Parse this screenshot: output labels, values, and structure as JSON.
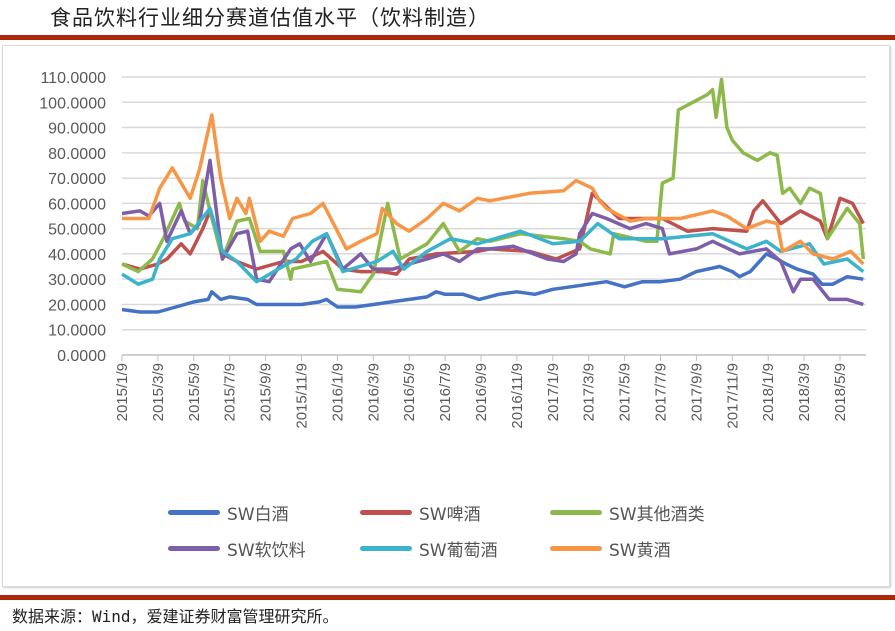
{
  "title": "食品饮料行业细分赛道估值水平（饮料制造）",
  "source": "数据来源：Wind，爱建证券财富管理研究所。",
  "chart_data": {
    "type": "line",
    "title": "食品饮料行业细分赛道估值水平（饮料制造）",
    "xlabel": "",
    "ylabel": "",
    "x_unit": "months since 2015/1/9",
    "xlim": [
      0,
      41.3
    ],
    "ylim": [
      0,
      110
    ],
    "grid": true,
    "legend_position": "bottom",
    "y_ticks": [
      "0.0000",
      "10.0000",
      "20.0000",
      "30.0000",
      "40.0000",
      "50.0000",
      "60.0000",
      "70.0000",
      "80.0000",
      "90.0000",
      "100.0000",
      "110.0000"
    ],
    "x_ticks": [
      "2015/1/9",
      "2015/3/9",
      "2015/5/9",
      "2015/7/9",
      "2015/9/9",
      "2015/11/9",
      "2016/1/9",
      "2016/3/9",
      "2016/5/9",
      "2016/7/9",
      "2016/9/9",
      "2016/11/9",
      "2017/1/9",
      "2017/3/9",
      "2017/5/9",
      "2017/7/9",
      "2017/9/9",
      "2017/11/9",
      "2018/1/9",
      "2018/3/9",
      "2018/5/9"
    ],
    "series": [
      {
        "name": "SW白酒",
        "color": "#4472c4",
        "points": [
          [
            0,
            18
          ],
          [
            1,
            17
          ],
          [
            2,
            17
          ],
          [
            3,
            19
          ],
          [
            4,
            21
          ],
          [
            4.8,
            22
          ],
          [
            5,
            25
          ],
          [
            5.5,
            22
          ],
          [
            6,
            23
          ],
          [
            7,
            22
          ],
          [
            7.5,
            20
          ],
          [
            9,
            20
          ],
          [
            10,
            20
          ],
          [
            11,
            21
          ],
          [
            11.4,
            22
          ],
          [
            12,
            19
          ],
          [
            13,
            19
          ],
          [
            14,
            20
          ],
          [
            15,
            21
          ],
          [
            16,
            22
          ],
          [
            17,
            23
          ],
          [
            17.5,
            25
          ],
          [
            18,
            24
          ],
          [
            19,
            24
          ],
          [
            19.9,
            22
          ],
          [
            21,
            24
          ],
          [
            22,
            25
          ],
          [
            23,
            24
          ],
          [
            24,
            26
          ],
          [
            25,
            27
          ],
          [
            26,
            28
          ],
          [
            27,
            29
          ],
          [
            28,
            27
          ],
          [
            29,
            29
          ],
          [
            30,
            29
          ],
          [
            31.1,
            30
          ],
          [
            32,
            33
          ],
          [
            33.3,
            35
          ],
          [
            34,
            33
          ],
          [
            34.4,
            31
          ],
          [
            35,
            33
          ],
          [
            35.9,
            40
          ],
          [
            36.5,
            38
          ],
          [
            37,
            36
          ],
          [
            37.6,
            34
          ],
          [
            38.5,
            32
          ],
          [
            39,
            28
          ],
          [
            39.6,
            28
          ],
          [
            40.4,
            31
          ],
          [
            41.3,
            30
          ]
        ]
      },
      {
        "name": "SW啤酒",
        "color": "#c0504d",
        "points": [
          [
            0,
            36
          ],
          [
            1,
            34
          ],
          [
            2,
            36
          ],
          [
            2.5,
            38
          ],
          [
            3.3,
            44
          ],
          [
            3.8,
            40
          ],
          [
            4.5,
            50
          ],
          [
            4.9,
            57
          ],
          [
            5.6,
            40
          ],
          [
            6.4,
            37
          ],
          [
            7.5,
            34
          ],
          [
            9,
            37
          ],
          [
            10,
            37
          ],
          [
            11.2,
            41
          ],
          [
            12.3,
            34
          ],
          [
            13.3,
            33
          ],
          [
            14.5,
            33
          ],
          [
            15.3,
            32
          ],
          [
            16,
            38
          ],
          [
            17.5,
            40
          ],
          [
            19.8,
            41
          ],
          [
            20.5,
            42
          ],
          [
            22.7,
            41
          ],
          [
            24.2,
            38
          ],
          [
            25.5,
            42
          ],
          [
            26.2,
            64
          ],
          [
            26.8,
            60
          ],
          [
            27.7,
            54
          ],
          [
            29.2,
            54
          ],
          [
            30.1,
            54
          ],
          [
            31.5,
            49
          ],
          [
            32.9,
            50
          ],
          [
            34.8,
            49
          ],
          [
            35.2,
            57
          ],
          [
            35.7,
            61
          ],
          [
            36.7,
            52
          ],
          [
            37.8,
            57
          ],
          [
            38.9,
            53
          ],
          [
            39.3,
            46
          ],
          [
            40,
            62
          ],
          [
            40.7,
            60
          ],
          [
            41.3,
            52
          ]
        ]
      },
      {
        "name": "SW其他酒类",
        "color": "#8db94b",
        "points": [
          [
            0,
            36
          ],
          [
            0.9,
            33
          ],
          [
            1.7,
            38
          ],
          [
            2.3,
            46
          ],
          [
            3.2,
            60
          ],
          [
            3.5,
            53
          ],
          [
            4.2,
            50
          ],
          [
            4.5,
            69
          ],
          [
            4.9,
            57
          ],
          [
            5.6,
            38
          ],
          [
            6.4,
            53
          ],
          [
            7.1,
            54
          ],
          [
            7.7,
            41
          ],
          [
            9,
            41
          ],
          [
            9.4,
            30
          ],
          [
            9.5,
            34
          ],
          [
            11.4,
            37
          ],
          [
            12,
            26
          ],
          [
            13.3,
            25
          ],
          [
            14,
            32
          ],
          [
            14.8,
            60
          ],
          [
            15.5,
            38
          ],
          [
            17,
            44
          ],
          [
            17.9,
            52
          ],
          [
            18.8,
            41
          ],
          [
            19.8,
            46
          ],
          [
            20.5,
            45
          ],
          [
            22.2,
            48
          ],
          [
            24.6,
            46
          ],
          [
            25.5,
            45
          ],
          [
            26.1,
            42
          ],
          [
            27.2,
            40
          ],
          [
            27.4,
            48
          ],
          [
            29.2,
            45
          ],
          [
            29.8,
            45
          ],
          [
            30.1,
            68
          ],
          [
            30.7,
            70
          ],
          [
            31,
            97
          ],
          [
            31.8,
            100
          ],
          [
            32.6,
            103
          ],
          [
            32.9,
            105
          ],
          [
            33.1,
            94
          ],
          [
            33.4,
            109
          ],
          [
            33.7,
            90
          ],
          [
            34,
            85
          ],
          [
            34.6,
            80
          ],
          [
            35.4,
            77
          ],
          [
            36.1,
            80
          ],
          [
            36.5,
            79
          ],
          [
            36.8,
            64
          ],
          [
            37.2,
            66
          ],
          [
            37.8,
            60
          ],
          [
            38.3,
            66
          ],
          [
            38.9,
            64
          ],
          [
            39.3,
            46
          ],
          [
            40.4,
            58
          ],
          [
            41.1,
            52
          ],
          [
            41.3,
            38
          ]
        ]
      },
      {
        "name": "SW软饮料",
        "color": "#7e5ea8",
        "points": [
          [
            0,
            56
          ],
          [
            1,
            57
          ],
          [
            1.5,
            55
          ],
          [
            2.1,
            60
          ],
          [
            2.5,
            45
          ],
          [
            3.3,
            57
          ],
          [
            3.8,
            48
          ],
          [
            4.3,
            52
          ],
          [
            4.9,
            77
          ],
          [
            5.6,
            38
          ],
          [
            6.4,
            48
          ],
          [
            7,
            49
          ],
          [
            7.5,
            30
          ],
          [
            8.2,
            29
          ],
          [
            9.4,
            42
          ],
          [
            9.9,
            44
          ],
          [
            10.5,
            37
          ],
          [
            11.4,
            48
          ],
          [
            12.3,
            34
          ],
          [
            13.3,
            40
          ],
          [
            14,
            34
          ],
          [
            15.1,
            34
          ],
          [
            16,
            36
          ],
          [
            17,
            38
          ],
          [
            17.9,
            40
          ],
          [
            18.8,
            37
          ],
          [
            19.8,
            42
          ],
          [
            20.5,
            42
          ],
          [
            21.8,
            43
          ],
          [
            23.7,
            38
          ],
          [
            24.6,
            37
          ],
          [
            25.3,
            40
          ],
          [
            25.5,
            48
          ],
          [
            26.2,
            56
          ],
          [
            27,
            54
          ],
          [
            28.3,
            50
          ],
          [
            29.2,
            52
          ],
          [
            30.1,
            50
          ],
          [
            30.5,
            40
          ],
          [
            32,
            42
          ],
          [
            32.9,
            45
          ],
          [
            34.4,
            40
          ],
          [
            35.9,
            42
          ],
          [
            36.7,
            37
          ],
          [
            37.4,
            25
          ],
          [
            37.8,
            30
          ],
          [
            38.5,
            30
          ],
          [
            39.4,
            22
          ],
          [
            40.4,
            22
          ],
          [
            41.3,
            20
          ]
        ]
      },
      {
        "name": "SW葡萄酒",
        "color": "#3bb3cc",
        "points": [
          [
            0,
            32
          ],
          [
            0.9,
            28
          ],
          [
            1.7,
            30
          ],
          [
            2.1,
            38
          ],
          [
            2.8,
            46
          ],
          [
            3.8,
            48
          ],
          [
            4.9,
            58
          ],
          [
            5.6,
            41
          ],
          [
            6.4,
            37
          ],
          [
            7.5,
            29
          ],
          [
            8.7,
            34
          ],
          [
            9.7,
            38
          ],
          [
            10.6,
            45
          ],
          [
            11.4,
            48
          ],
          [
            12.3,
            33
          ],
          [
            14.2,
            37
          ],
          [
            15.1,
            41
          ],
          [
            15.7,
            34
          ],
          [
            17,
            41
          ],
          [
            18.3,
            46
          ],
          [
            19.8,
            44
          ],
          [
            22.2,
            49
          ],
          [
            24,
            44
          ],
          [
            25.5,
            45
          ],
          [
            26.5,
            52
          ],
          [
            27.7,
            46
          ],
          [
            30.1,
            46
          ],
          [
            32.9,
            48
          ],
          [
            34.8,
            42
          ],
          [
            35.9,
            45
          ],
          [
            36.7,
            41
          ],
          [
            38.3,
            44
          ],
          [
            39.1,
            36
          ],
          [
            40.4,
            38
          ],
          [
            41.3,
            33
          ]
        ]
      },
      {
        "name": "SW黄酒",
        "color": "#f79646",
        "points": [
          [
            0,
            54
          ],
          [
            1.5,
            54
          ],
          [
            2.1,
            66
          ],
          [
            2.8,
            74
          ],
          [
            3.8,
            62
          ],
          [
            4.3,
            73
          ],
          [
            5,
            95
          ],
          [
            5.5,
            70
          ],
          [
            6,
            54
          ],
          [
            6.4,
            62
          ],
          [
            6.9,
            56
          ],
          [
            7.1,
            62
          ],
          [
            7.7,
            45
          ],
          [
            8.2,
            49
          ],
          [
            9,
            47
          ],
          [
            9.5,
            54
          ],
          [
            10.5,
            56
          ],
          [
            11.2,
            60
          ],
          [
            12,
            49
          ],
          [
            12.5,
            42
          ],
          [
            13.3,
            45
          ],
          [
            14.2,
            48
          ],
          [
            14.5,
            58
          ],
          [
            15.3,
            52
          ],
          [
            16,
            49
          ],
          [
            17,
            54
          ],
          [
            17.9,
            60
          ],
          [
            18.8,
            57
          ],
          [
            19.8,
            62
          ],
          [
            20.5,
            61
          ],
          [
            22.7,
            64
          ],
          [
            24.6,
            65
          ],
          [
            25.3,
            69
          ],
          [
            26.2,
            66
          ],
          [
            26.6,
            61
          ],
          [
            27,
            58
          ],
          [
            28.3,
            53
          ],
          [
            29.2,
            54
          ],
          [
            31.1,
            54
          ],
          [
            32.9,
            57
          ],
          [
            33.7,
            55
          ],
          [
            34.8,
            50
          ],
          [
            35.9,
            53
          ],
          [
            36.5,
            52
          ],
          [
            36.8,
            41
          ],
          [
            37.8,
            45
          ],
          [
            38.5,
            40
          ],
          [
            39.6,
            38
          ],
          [
            40.6,
            41
          ],
          [
            41.3,
            36
          ]
        ]
      }
    ]
  }
}
